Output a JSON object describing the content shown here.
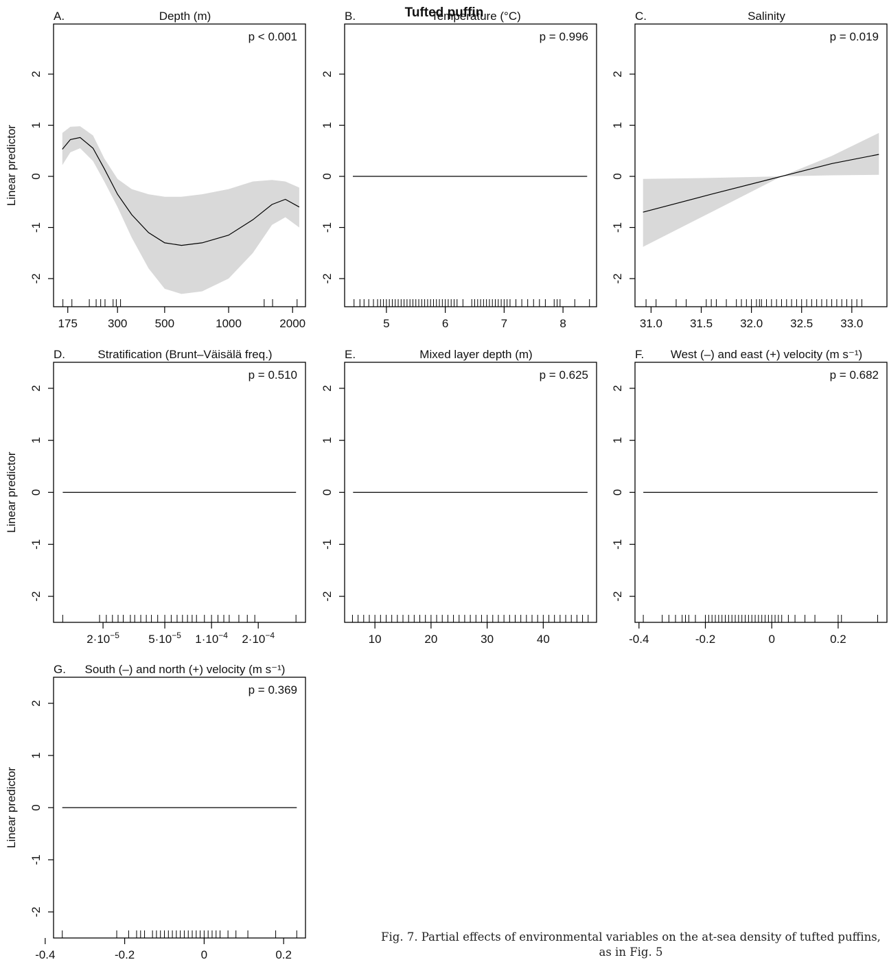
{
  "title": "Tufted puffin",
  "caption": "Fig. 7. Partial effects of environmental variables on the at-sea density of tufted puffins, as in Fig. 5",
  "chart_data": [
    {
      "type": "line",
      "panel": "A.",
      "title": "Depth (m)",
      "annotation": "p < 0.001",
      "ylabel": "Linear predictor",
      "xlog": true,
      "x": [
        165,
        180,
        200,
        230,
        260,
        300,
        350,
        420,
        500,
        600,
        750,
        1000,
        1300,
        1600,
        1850,
        2150
      ],
      "values": [
        0.53,
        0.72,
        0.76,
        0.55,
        0.15,
        -0.35,
        -0.75,
        -1.1,
        -1.3,
        -1.35,
        -1.3,
        -1.15,
        -0.85,
        -0.55,
        -0.45,
        -0.6
      ],
      "upper": [
        0.85,
        0.97,
        0.98,
        0.8,
        0.35,
        -0.05,
        -0.25,
        -0.35,
        -0.4,
        -0.4,
        -0.35,
        -0.25,
        -0.1,
        -0.07,
        -0.1,
        -0.22
      ],
      "lower": [
        0.22,
        0.47,
        0.55,
        0.3,
        -0.1,
        -0.6,
        -1.2,
        -1.8,
        -2.2,
        -2.3,
        -2.25,
        -2.0,
        -1.5,
        -0.95,
        -0.8,
        -1.0
      ],
      "color": "#000000",
      "band_color": "#d9d9d9",
      "rug": [
        166,
        183,
        221,
        238,
        250,
        262,
        286,
        296,
        310,
        1470,
        1610,
        2100
      ],
      "xlim": [
        150,
        2300
      ],
      "xticks": [
        175,
        300,
        500,
        1000,
        2000
      ],
      "ylim": [
        -2.55,
        2.98
      ],
      "yticks": [
        -2,
        -1,
        0,
        1,
        2
      ]
    },
    {
      "type": "line",
      "panel": "B.",
      "title": "Temperature (°C)",
      "annotation": "p = 0.996",
      "x": [
        4.43,
        8.41
      ],
      "values": [
        0,
        0
      ],
      "color": "#000000",
      "rug": [
        4.45,
        4.55,
        4.62,
        4.7,
        4.78,
        4.85,
        4.9,
        4.95,
        5.0,
        5.05,
        5.1,
        5.15,
        5.2,
        5.25,
        5.3,
        5.35,
        5.4,
        5.45,
        5.5,
        5.55,
        5.6,
        5.65,
        5.7,
        5.75,
        5.8,
        5.85,
        5.9,
        5.95,
        6.0,
        6.05,
        6.1,
        6.15,
        6.2,
        6.3,
        6.45,
        6.5,
        6.55,
        6.6,
        6.65,
        6.7,
        6.75,
        6.8,
        6.85,
        6.9,
        6.95,
        7.0,
        7.05,
        7.1,
        7.2,
        7.3,
        7.4,
        7.5,
        7.6,
        7.7,
        7.85,
        7.9,
        7.95,
        8.2,
        8.45
      ],
      "xlim": [
        4.29,
        8.57
      ],
      "xticks": [
        5,
        6,
        7,
        8
      ],
      "ylim": [
        -2.55,
        2.98
      ],
      "yticks": [
        -2,
        -1,
        0,
        1,
        2
      ]
    },
    {
      "type": "line",
      "panel": "C.",
      "title": "Salinity",
      "annotation": "p = 0.019",
      "x": [
        30.92,
        31.6,
        32.3,
        32.8,
        33.27
      ],
      "values": [
        -0.7,
        -0.35,
        0,
        0.25,
        0.43
      ],
      "upper": [
        -0.05,
        -0.03,
        0,
        0.4,
        0.85
      ],
      "lower": [
        -1.38,
        -0.7,
        0,
        0.02,
        0.03
      ],
      "color": "#000000",
      "band_color": "#d9d9d9",
      "rug": [
        30.95,
        31.05,
        31.25,
        31.35,
        31.55,
        31.6,
        31.65,
        31.75,
        31.85,
        31.9,
        31.95,
        32.0,
        32.05,
        32.08,
        32.1,
        32.15,
        32.2,
        32.25,
        32.3,
        32.35,
        32.4,
        32.45,
        32.5,
        32.55,
        32.6,
        32.65,
        32.7,
        32.75,
        32.8,
        32.85,
        32.9,
        32.95,
        33.0,
        33.05,
        33.1
      ],
      "xlim": [
        30.84,
        33.35
      ],
      "xticks": [
        {
          "value": 31,
          "label": "31.0"
        },
        31.5,
        {
          "value": 32,
          "label": "32.0"
        },
        32.5,
        {
          "value": 33,
          "label": "33.0"
        }
      ],
      "ylim": [
        -2.55,
        2.98
      ],
      "yticks": [
        -2,
        -1,
        0,
        1,
        2
      ]
    },
    {
      "type": "line",
      "panel": "D.",
      "title": "Stratification (Brunt–Väisälä freq.)",
      "annotation": "p = 0.510",
      "ylabel": "Linear predictor",
      "xlog": true,
      "x": [
        1.1e-05,
        0.00035
      ],
      "values": [
        0,
        0
      ],
      "color": "#000000",
      "rug": [
        1.1e-05,
        1.9e-05,
        2.1e-05,
        2.3e-05,
        2.5e-05,
        2.7e-05,
        3e-05,
        3.2e-05,
        3.5e-05,
        3.8e-05,
        4.1e-05,
        4.5e-05,
        5e-05,
        5.5e-05,
        6e-05,
        6.5e-05,
        7e-05,
        7.5e-05,
        8e-05,
        9e-05,
        0.0001,
        0.00011,
        0.00012,
        0.00013,
        0.00015,
        0.00017,
        0.00019,
        0.00035
      ],
      "xlim": [
        9.6e-06,
        0.000403
      ],
      "xticks": [
        {
          "value": 2e-05,
          "label": "2·10",
          "sup": "−5"
        },
        {
          "value": 5e-05,
          "label": "5·10",
          "sup": "−5"
        },
        {
          "value": 0.0001,
          "label": "1·10",
          "sup": "−4"
        },
        {
          "value": 0.0002,
          "label": "2·10",
          "sup": "−4"
        }
      ],
      "ylim": [
        -2.5,
        2.5
      ],
      "yticks": [
        -2,
        -1,
        0,
        1,
        2
      ]
    },
    {
      "type": "line",
      "panel": "E.",
      "title": "Mixed layer depth (m)",
      "annotation": "p = 0.625",
      "x": [
        6.1,
        47.9
      ],
      "values": [
        0,
        0
      ],
      "color": "#000000",
      "rug": [
        6,
        7,
        8,
        9,
        10,
        11,
        12,
        13,
        14,
        15,
        16,
        17,
        18,
        19,
        20,
        21,
        22,
        23,
        24,
        25,
        26,
        27,
        28,
        29,
        30,
        31,
        32,
        33,
        34,
        35,
        36,
        37,
        38,
        39,
        40,
        41,
        42,
        43,
        44,
        45,
        46,
        47,
        48
      ],
      "xlim": [
        4.6,
        49.5
      ],
      "xticks": [
        10,
        20,
        30,
        40
      ],
      "ylim": [
        -2.5,
        2.5
      ],
      "yticks": [
        -2,
        -1,
        0,
        1,
        2
      ]
    },
    {
      "type": "line",
      "panel": "F.",
      "title": "West (–) and east (+) velocity (m s⁻¹)",
      "annotation": "p = 0.682",
      "x": [
        -0.387,
        0.319
      ],
      "values": [
        0,
        0
      ],
      "color": "#000000",
      "rug": [
        -0.387,
        -0.33,
        -0.31,
        -0.29,
        -0.27,
        -0.26,
        -0.25,
        -0.23,
        -0.2,
        -0.19,
        -0.18,
        -0.17,
        -0.16,
        -0.15,
        -0.14,
        -0.13,
        -0.12,
        -0.11,
        -0.1,
        -0.09,
        -0.08,
        -0.07,
        -0.06,
        -0.05,
        -0.04,
        -0.03,
        -0.02,
        -0.01,
        0.0,
        0.01,
        0.02,
        0.03,
        0.05,
        0.07,
        0.1,
        0.13,
        0.2,
        0.21,
        0.319
      ],
      "xlim": [
        -0.412,
        0.347
      ],
      "xticks": [
        -0.4,
        -0.2,
        0,
        0.2
      ],
      "ylim": [
        -2.5,
        2.5
      ],
      "yticks": [
        -2,
        -1,
        0,
        1,
        2
      ]
    },
    {
      "type": "line",
      "panel": "G.",
      "title": "South (–) and north (+) velocity (m s⁻¹)",
      "annotation": "p = 0.369",
      "ylabel": "Linear predictor",
      "x": [
        -0.357,
        0.233
      ],
      "values": [
        0,
        0
      ],
      "color": "#000000",
      "rug": [
        -0.357,
        -0.22,
        -0.19,
        -0.17,
        -0.16,
        -0.15,
        -0.13,
        -0.12,
        -0.11,
        -0.1,
        -0.09,
        -0.08,
        -0.07,
        -0.06,
        -0.05,
        -0.04,
        -0.03,
        -0.02,
        -0.01,
        0,
        0.01,
        0.02,
        0.03,
        0.04,
        0.06,
        0.08,
        0.11,
        0.18,
        0.233
      ],
      "xlim": [
        -0.379,
        0.255
      ],
      "xticks": [
        -0.4,
        -0.2,
        0,
        0.2
      ],
      "ylim": [
        -2.5,
        2.5
      ],
      "yticks": [
        -2,
        -1,
        0,
        1,
        2
      ]
    }
  ]
}
